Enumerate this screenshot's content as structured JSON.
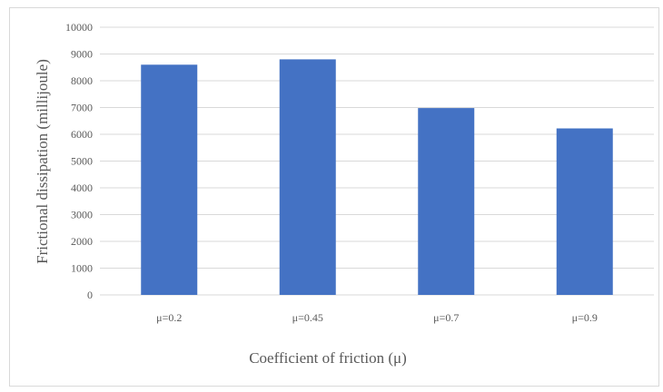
{
  "chart_data": {
    "type": "bar",
    "categories": [
      "μ=0.2",
      "μ=0.45",
      "μ=0.7",
      "μ=0.9"
    ],
    "values": [
      8600,
      8800,
      6980,
      6220
    ],
    "title": "",
    "xlabel": "Coefficient of friction (μ)",
    "ylabel": "Frictional dissipation (millijoule)",
    "ylim": [
      0,
      10000
    ],
    "yticks": [
      "0",
      "1000",
      "2000",
      "3000",
      "4000",
      "5000",
      "6000",
      "7000",
      "8000",
      "9000",
      "10000"
    ],
    "grid": true,
    "legend": "none",
    "bar_color": "#4472c4",
    "grid_color": "#d9d9d9"
  }
}
